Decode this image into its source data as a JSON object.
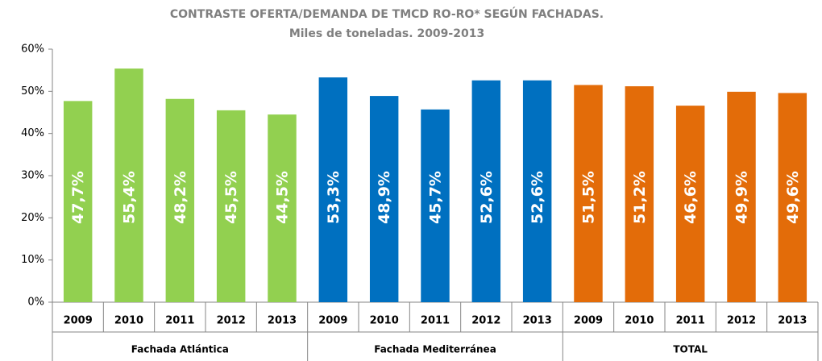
{
  "chart_data": {
    "type": "bar",
    "title": "CONTRASTE OFERTA/DEMANDA DE TMCD RO-RO* SEGÚN FACHADAS.",
    "subtitle": "Miles de toneladas. 2009-2013",
    "ylim": [
      0,
      60
    ],
    "yticks": [
      {
        "value": 0,
        "label": "0%"
      },
      {
        "value": 10,
        "label": "10%"
      },
      {
        "value": 20,
        "label": "20%"
      },
      {
        "value": 30,
        "label": "30%"
      },
      {
        "value": 40,
        "label": "40%"
      },
      {
        "value": 50,
        "label": "50%"
      },
      {
        "value": 60,
        "label": "60%"
      }
    ],
    "series": [
      {
        "name": "Fachada Atlántica",
        "color": "#92d050",
        "categories": [
          "2009",
          "2010",
          "2011",
          "2012",
          "2013"
        ],
        "values": [
          47.7,
          55.4,
          48.2,
          45.5,
          44.5
        ],
        "value_labels": [
          "47,7%",
          "55,4%",
          "48,2%",
          "45,5%",
          "44,5%"
        ]
      },
      {
        "name": "Fachada Mediterránea",
        "color": "#0070c0",
        "categories": [
          "2009",
          "2010",
          "2011",
          "2012",
          "2013"
        ],
        "values": [
          53.3,
          48.9,
          45.7,
          52.6,
          52.6
        ],
        "value_labels": [
          "53,3%",
          "48,9%",
          "45,7%",
          "52,6%",
          "52,6%"
        ]
      },
      {
        "name": "TOTAL",
        "color": "#e36c09",
        "categories": [
          "2009",
          "2010",
          "2011",
          "2012",
          "2013"
        ],
        "values": [
          51.5,
          51.2,
          46.6,
          49.9,
          49.6
        ],
        "value_labels": [
          "51,5%",
          "51,2%",
          "46,6%",
          "49,9%",
          "49,6%"
        ]
      }
    ]
  }
}
